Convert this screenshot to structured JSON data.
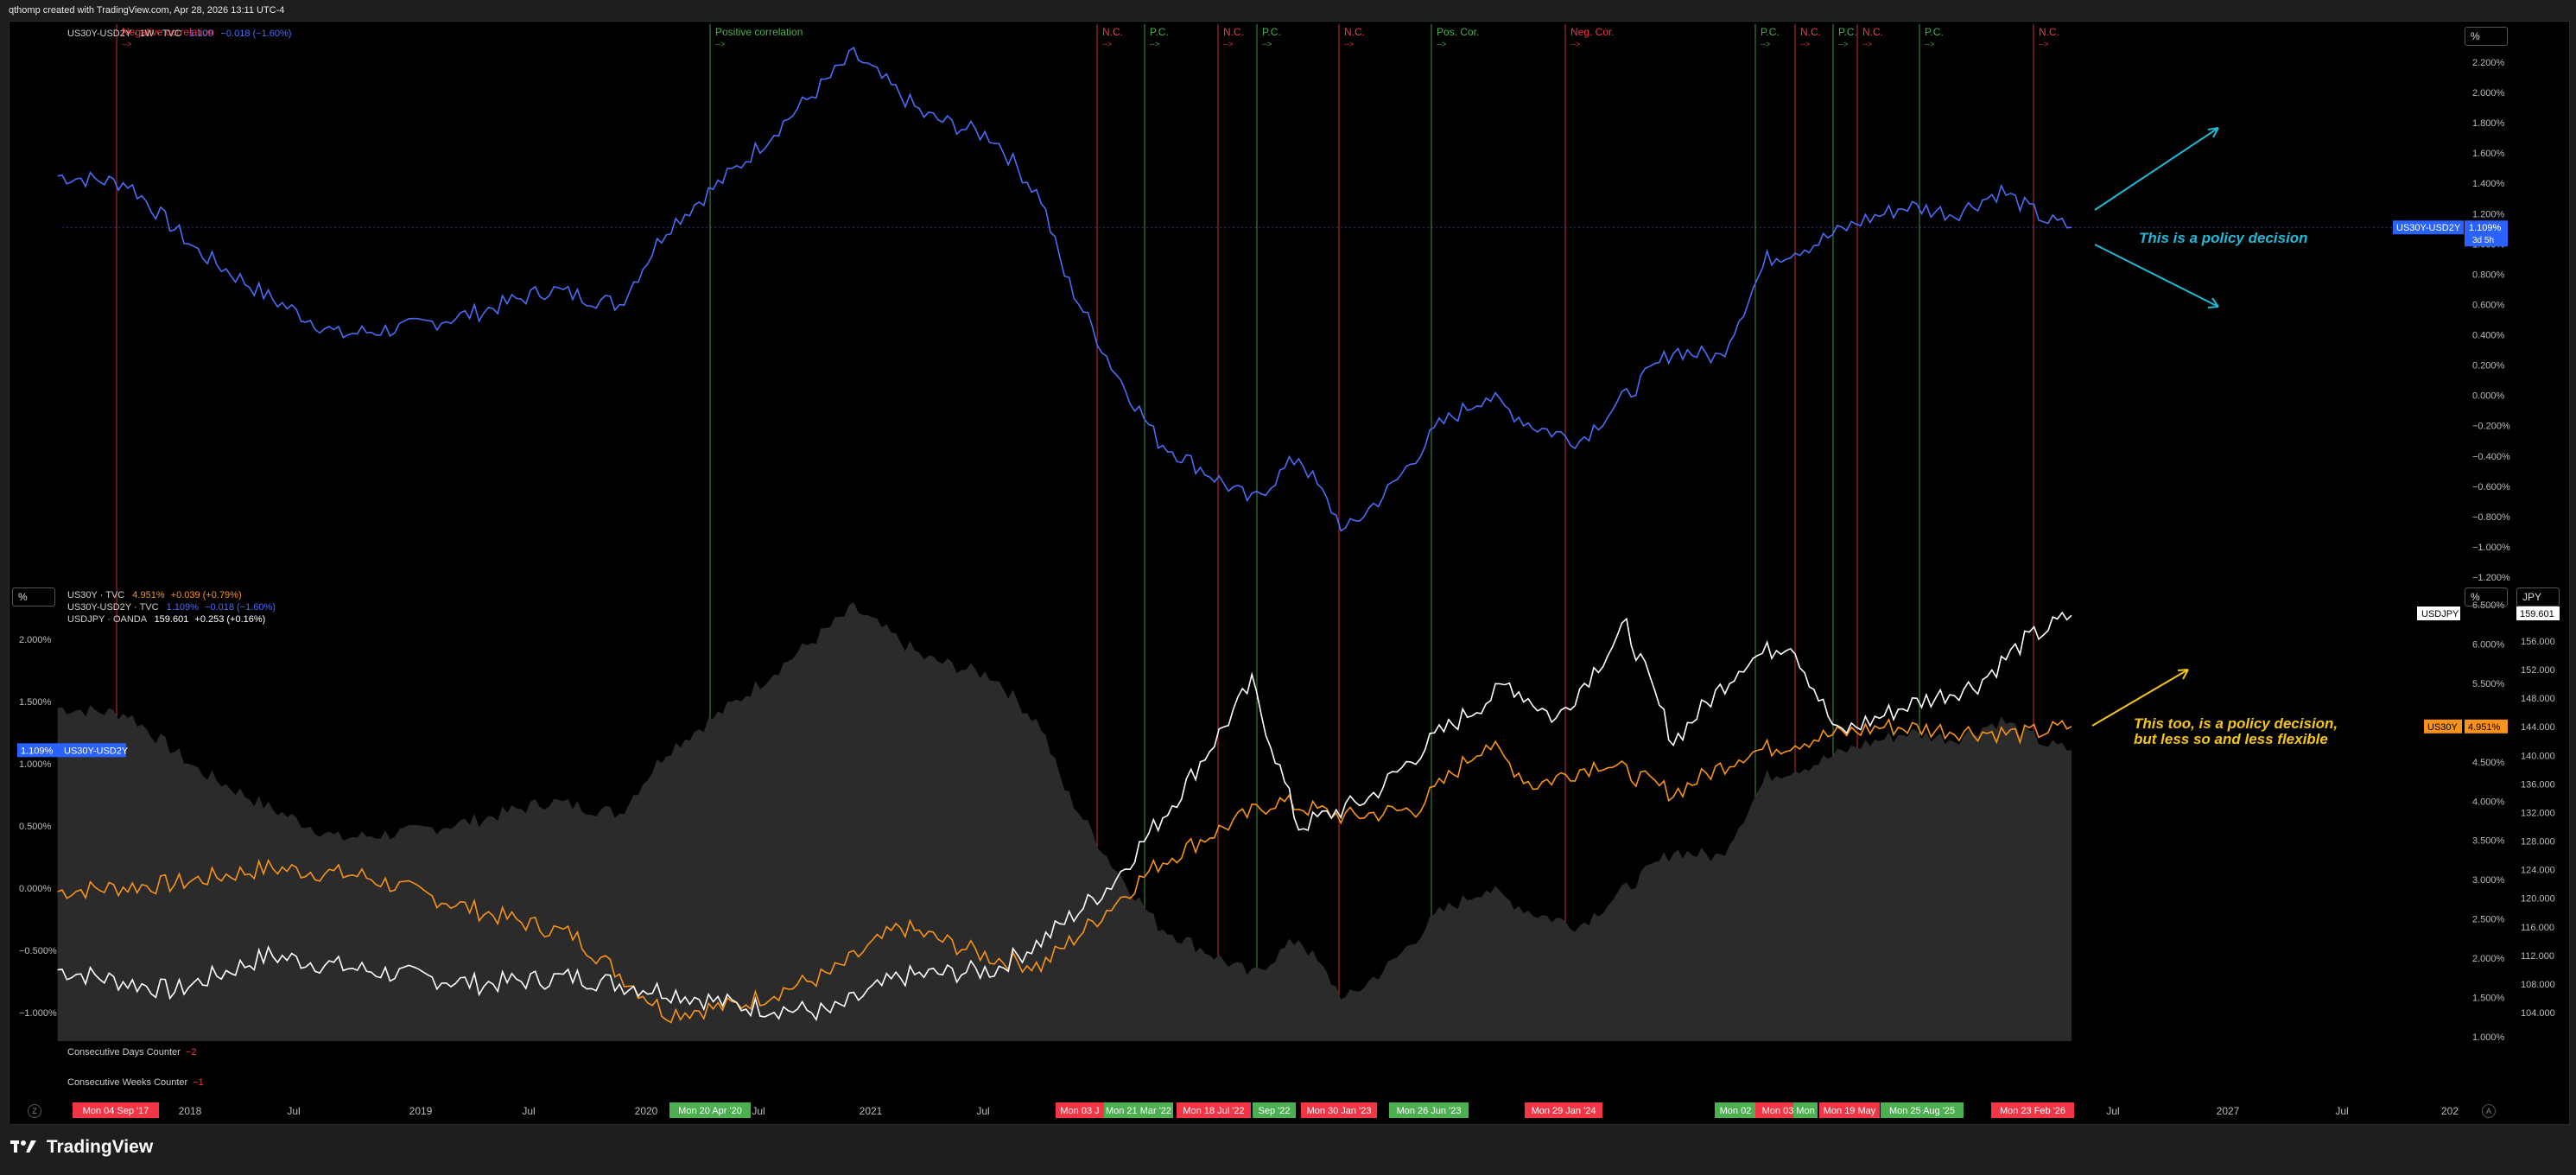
{
  "header": "qthomp created with TradingView.com, Apr 28, 2026 13:11 UTC-4",
  "top_pane": {
    "legend": {
      "symbol": "US30Y-USD2Y · 1W · TVC",
      "value": "1.109",
      "change": "−0.018 (−1.60%)"
    },
    "unit_button": "%",
    "axis": [
      "2.200%",
      "2.000%",
      "1.800%",
      "1.600%",
      "1.400%",
      "1.200%",
      "1.000%",
      "0.800%",
      "0.600%",
      "0.400%",
      "0.200%",
      "0.000%",
      "−0.200%",
      "−0.400%",
      "−0.600%",
      "−0.800%",
      "−1.000%",
      "−1.200%"
    ],
    "price_tag": {
      "label": "US30Y-USD2Y",
      "value": "1.109%",
      "countdown": "3d 5h"
    },
    "annotation": "This is a policy decision",
    "corr_labels": [
      {
        "text": "Negative correlation",
        "color": "#f23645"
      },
      {
        "text": "Positive correlation",
        "color": "#4caf50"
      },
      {
        "text": "N.C.",
        "color": "#f23645"
      },
      {
        "text": "P.C.",
        "color": "#4caf50"
      },
      {
        "text": "N.C.",
        "color": "#f23645"
      },
      {
        "text": "P.C.",
        "color": "#4caf50"
      },
      {
        "text": "N.C.",
        "color": "#f23645"
      },
      {
        "text": "Pos. Cor.",
        "color": "#4caf50"
      },
      {
        "text": "Neg. Cor.",
        "color": "#f23645"
      },
      {
        "text": "P.C.",
        "color": "#4caf50"
      },
      {
        "text": "N.C.",
        "color": "#f23645"
      },
      {
        "text": "P.C.",
        "color": "#4caf50"
      },
      {
        "text": "N.C.",
        "color": "#f23645"
      },
      {
        "text": "P.C.",
        "color": "#4caf50"
      },
      {
        "text": "N.C.",
        "color": "#f23645"
      }
    ],
    "arrow_glyph": "-->"
  },
  "bottom_pane": {
    "unit_button_left": "%",
    "unit_button_right": "%",
    "currency_button": "JPY",
    "legend": [
      {
        "name": "US30Y · TVC",
        "value": "4.951%",
        "change": "+0.039 (+0.79%)",
        "color": "#f7931a"
      },
      {
        "name": "US30Y-USD2Y · TVC",
        "value": "1.109%",
        "change": "−0.018 (−1.60%)",
        "color": "#4a6cf7"
      },
      {
        "name": "USDJPY · OANDA",
        "value": "159.601",
        "change": "+0.253 (+0.16%)",
        "color": "#ffffff"
      }
    ],
    "left_axis": [
      "2.000%",
      "1.500%",
      "1.000%",
      "0.500%",
      "0.000%",
      "−0.500%",
      "−1.000%"
    ],
    "left_tag": {
      "value": "1.109%",
      "label": "US30Y-USD2Y"
    },
    "right_axis_pct": [
      "6.500%",
      "6.000%",
      "5.500%",
      "5.000%",
      "4.500%",
      "4.000%",
      "3.500%",
      "3.000%",
      "2.500%",
      "2.000%",
      "1.500%",
      "1.000%"
    ],
    "right_axis_jpy": [
      "156.000",
      "152.000",
      "148.000",
      "144.000",
      "140.000",
      "136.000",
      "132.000",
      "128.000",
      "124.000",
      "120.000",
      "116.000",
      "112.000",
      "108.000",
      "104.000"
    ],
    "usdjpy_tag": {
      "label": "USDJPY",
      "value": "159.601"
    },
    "us30y_tag": {
      "label": "US30Y",
      "value": "4.951%"
    },
    "annotation_line1": "This too, is a policy decision,",
    "annotation_line2": "but less so and less flexible",
    "counters": [
      {
        "label": "Consecutive Days Counter",
        "value": "−2"
      },
      {
        "label": "Consecutive Weeks Counter",
        "value": "−1"
      }
    ]
  },
  "time_axis": {
    "labels": [
      "2018",
      "Jul",
      "2019",
      "Jul",
      "2020",
      "Jul",
      "2021",
      "Jul",
      "Jul",
      "2027",
      "Jul",
      "202"
    ],
    "date_tags": [
      {
        "text": "Mon 04 Sep '17",
        "color": "#f23645"
      },
      {
        "text": "Mon 20 Apr '20",
        "color": "#4caf50"
      },
      {
        "text": "Mon 03 J",
        "color": "#f23645"
      },
      {
        "text": "Mon 21 Mar '22",
        "color": "#4caf50"
      },
      {
        "text": "Mon 18 Jul '22",
        "color": "#f23645"
      },
      {
        "text": "Sep '22",
        "color": "#4caf50"
      },
      {
        "text": "Mon 30 Jan '23",
        "color": "#f23645"
      },
      {
        "text": "Mon 26 Jun '23",
        "color": "#4caf50"
      },
      {
        "text": "Mon 29 Jan '24",
        "color": "#f23645"
      },
      {
        "text": "Mon 02",
        "color": "#4caf50"
      },
      {
        "text": "Mon 03",
        "color": "#f23645"
      },
      {
        "text": "Mon",
        "color": "#4caf50"
      },
      {
        "text": "Mon 19 May",
        "color": "#f23645"
      },
      {
        "text": "Mon 25 Aug '25",
        "color": "#4caf50"
      },
      {
        "text": "Mon 23 Feb '26",
        "color": "#f23645"
      }
    ],
    "left_circle": "Z",
    "right_circle": "A"
  },
  "footer": "TradingView",
  "colors": {
    "spread": "#4a6cf7",
    "us30y": "#f7931a",
    "usdjpy": "#ffffff",
    "green": "#4caf50",
    "red": "#f23645",
    "annot_cyan": "#22b8d6",
    "annot_yellow": "#f5c518"
  },
  "chart_data": {
    "type": "line",
    "title": "",
    "series": [
      {
        "name": "US30Y-USD2Y",
        "x": [
          2017.7,
          2018.0,
          2018.3,
          2018.6,
          2018.9,
          2019.2,
          2019.5,
          2019.8,
          2020.1,
          2020.3,
          2020.6,
          2020.9,
          2021.1,
          2021.4,
          2021.7,
          2021.9,
          2022.0,
          2022.2,
          2022.4,
          2022.6,
          2022.8,
          2023.0,
          2023.2,
          2023.4,
          2023.6,
          2023.8,
          2024.0,
          2024.2,
          2024.4,
          2024.6,
          2024.8,
          2025.0,
          2025.2,
          2025.4,
          2025.6,
          2025.8,
          2026.0,
          2026.2,
          2026.3
        ],
        "values": [
          1.45,
          1.4,
          0.95,
          0.65,
          0.4,
          0.45,
          0.55,
          0.7,
          0.6,
          1.1,
          1.5,
          1.95,
          2.25,
          1.85,
          1.7,
          1.3,
          0.8,
          0.2,
          -0.3,
          -0.5,
          -0.7,
          -0.4,
          -0.9,
          -0.6,
          -0.2,
          0.0,
          -0.2,
          -0.3,
          0.0,
          0.3,
          0.25,
          0.9,
          1.0,
          1.15,
          1.25,
          1.2,
          1.35,
          1.15,
          1.109
        ]
      },
      {
        "name": "US30Y",
        "x": [
          2017.7,
          2018.2,
          2018.6,
          2019.0,
          2019.5,
          2019.9,
          2020.3,
          2020.6,
          2021.0,
          2021.3,
          2021.7,
          2021.9,
          2022.1,
          2022.4,
          2022.7,
          2022.9,
          2023.2,
          2023.5,
          2023.8,
          2024.0,
          2024.3,
          2024.6,
          2024.9,
          2025.2,
          2025.5,
          2025.8,
          2026.1,
          2026.3
        ],
        "values": [
          2.85,
          2.95,
          3.15,
          3.05,
          2.6,
          2.3,
          1.3,
          1.4,
          1.8,
          2.4,
          2.0,
          1.9,
          2.4,
          3.2,
          3.7,
          4.0,
          3.8,
          3.9,
          4.75,
          4.2,
          4.5,
          4.1,
          4.6,
          4.8,
          4.95,
          4.9,
          4.85,
          4.951
        ]
      },
      {
        "name": "USDJPY",
        "x": [
          2017.7,
          2018.2,
          2018.6,
          2019.0,
          2019.5,
          2019.9,
          2020.3,
          2020.6,
          2021.0,
          2021.3,
          2021.7,
          2021.9,
          2022.2,
          2022.5,
          2022.8,
          2023.0,
          2023.3,
          2023.6,
          2023.9,
          2024.1,
          2024.4,
          2024.6,
          2024.9,
          2025.1,
          2025.3,
          2025.6,
          2025.9,
          2026.1,
          2026.3
        ],
        "values": [
          110,
          107,
          112,
          110,
          108,
          109,
          107,
          105,
          104,
          109,
          110,
          114,
          122,
          135,
          150,
          130,
          134,
          143,
          150,
          145,
          158,
          142,
          153,
          156,
          143,
          147,
          150,
          156,
          159.601
        ]
      }
    ]
  }
}
